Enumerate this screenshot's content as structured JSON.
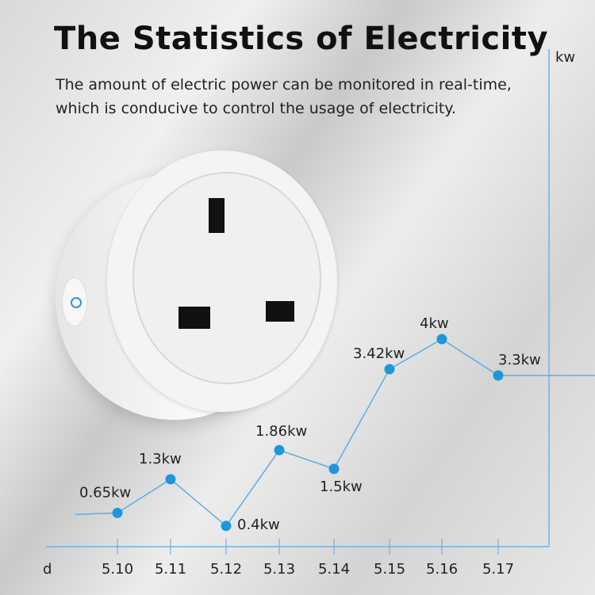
{
  "header": {
    "title": "The Statistics of Electricity",
    "subtitle_line1": "The amount of electric power can be monitored in real-time,",
    "subtitle_line2": "which is conducive to control the usage of electricity."
  },
  "chart_data": {
    "type": "line",
    "xlabel": "d",
    "ylabel": "kw",
    "categories": [
      "5.10",
      "5.11",
      "5.12",
      "5.13",
      "5.14",
      "5.15",
      "5.16",
      "5.17"
    ],
    "values": [
      0.65,
      1.3,
      0.4,
      1.86,
      1.5,
      3.42,
      4,
      3.3
    ],
    "data_labels": [
      "0.65kw",
      "1.3kw",
      "0.4kw",
      "1.86kw",
      "1.5kw",
      "3.42kw",
      "4kw",
      "3.3kw"
    ],
    "grid": false,
    "colors": {
      "line": "#5aaee0",
      "point": "#1e96dc",
      "axis": "#6fb3e0"
    }
  }
}
